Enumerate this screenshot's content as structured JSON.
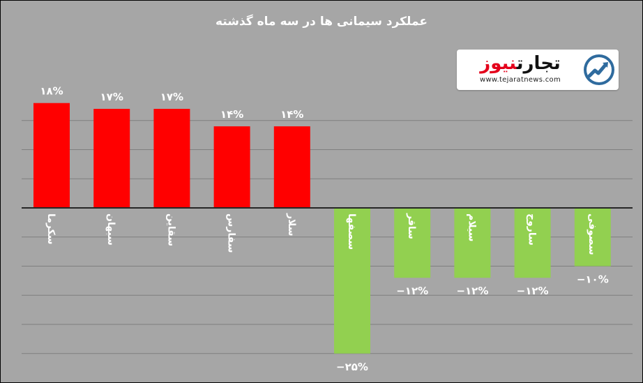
{
  "chart_data": {
    "type": "bar",
    "title": "عملکرد سیمانی ها در سه ماه گذشته",
    "xlabel": "",
    "ylabel": "",
    "ylim": [
      -25,
      18
    ],
    "grid": true,
    "legend": "none",
    "categories": [
      "سکرما",
      "سبهان",
      "سقاین",
      "سفارس",
      "سلار",
      "سصفها",
      "ساقر",
      "سیلام",
      "ساروج",
      "سصوفی"
    ],
    "values": [
      18,
      17,
      17,
      14,
      14,
      -25,
      -12,
      -12,
      -12,
      -10
    ],
    "value_labels": [
      "۱۸%",
      "۱۷%",
      "۱۷%",
      "۱۴%",
      "۱۴%",
      "−۲۵%",
      "−۱۲%",
      "−۱۲%",
      "−۱۲%",
      "−۱۰%"
    ],
    "colors": {
      "positive": "#ff0000",
      "negative": "#92d050",
      "grid": "#7f7f7f",
      "axis": "#262626",
      "label": "#ffffff",
      "background": "#a6a6a6"
    }
  },
  "logo": {
    "word_black": "تجارت",
    "word_red": "نیوز",
    "url": "www.tejaratnews.com",
    "icon": "chart-arrow-logo-icon"
  }
}
